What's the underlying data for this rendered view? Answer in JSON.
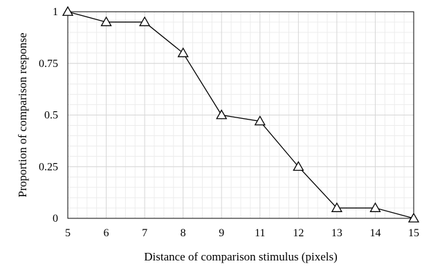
{
  "chart_data": {
    "type": "line",
    "title": "",
    "xlabel": "Distance of comparison stimulus (pixels)",
    "ylabel": "Proportion of comparison response",
    "categories": [
      "5",
      "6",
      "7",
      "8",
      "9",
      "11",
      "12",
      "13",
      "14",
      "15"
    ],
    "series": [
      {
        "values": [
          1.0,
          0.95,
          0.95,
          0.8,
          0.5,
          0.47,
          0.25,
          0.05,
          0.05,
          0.0
        ]
      }
    ],
    "ylim": [
      0,
      1
    ],
    "yticks": [
      {
        "value": 0,
        "label": "0"
      },
      {
        "value": 0.25,
        "label": "0.25"
      },
      {
        "value": 0.5,
        "label": "0.5"
      },
      {
        "value": 0.75,
        "label": "0.75"
      },
      {
        "value": 1,
        "label": "1"
      }
    ],
    "marker": "open-triangle",
    "grid": true,
    "legend": "none"
  }
}
